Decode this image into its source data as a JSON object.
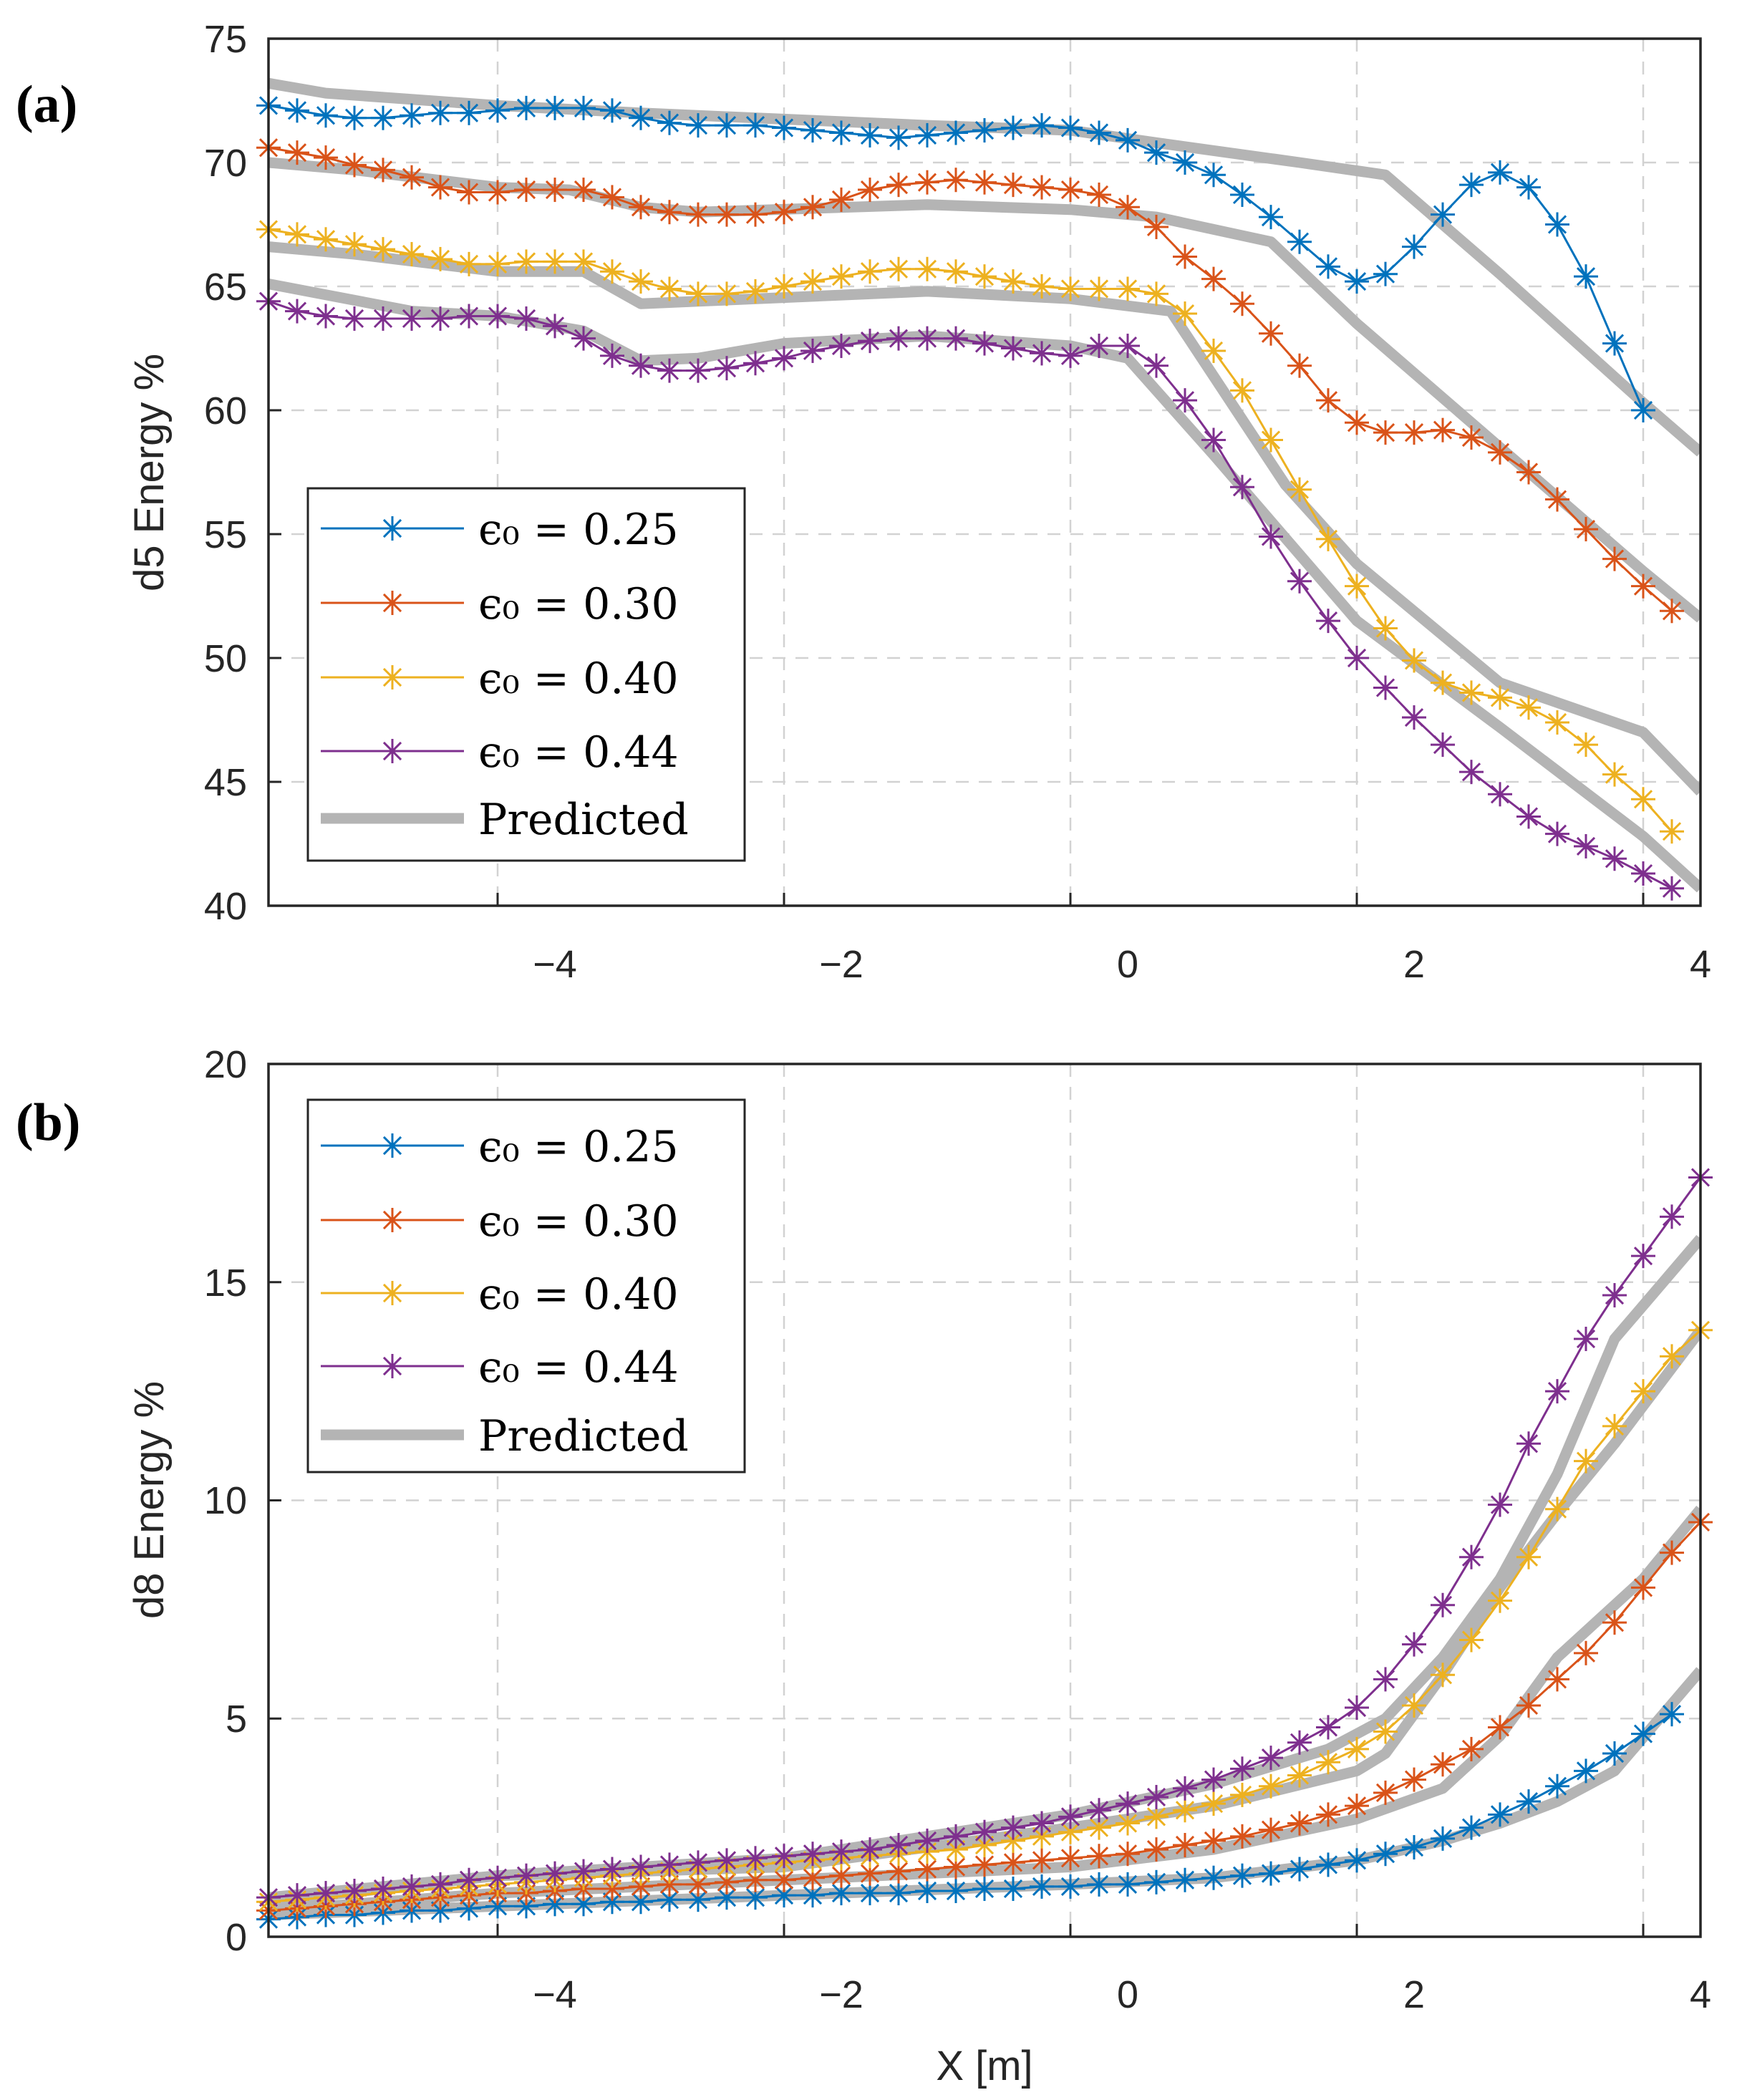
{
  "figure": {
    "colors": {
      "eps_025": "#0072BD",
      "eps_030": "#D95319",
      "eps_040": "#EDB120",
      "eps_044": "#7E2F8E",
      "predicted": "#b4b4b4"
    }
  },
  "chart_data": [
    {
      "type": "line",
      "panel": "(a)",
      "xlabel": "",
      "ylabel": "d5 Energy %",
      "xlim": [
        -5.6,
        4.4
      ],
      "ylim": [
        40,
        75
      ],
      "xticks": [
        -4,
        -2,
        0,
        2,
        4
      ],
      "xtick_labels": [
        "−4",
        "−2",
        "0",
        "2",
        "4"
      ],
      "yticks": [
        40,
        45,
        50,
        55,
        60,
        65,
        70,
        75
      ],
      "ytick_labels": [
        "40",
        "45",
        "50",
        "55",
        "60",
        "65",
        "70",
        "75"
      ],
      "grid": true,
      "legend_location": "bottom-left",
      "x_start": -5.6,
      "x_step": 0.2,
      "series": [
        {
          "name": "ϵ₀ = 0.25",
          "legend_label": "ϵ₀ = 0.25",
          "color": "#0072BD",
          "marker": "asterisk",
          "values": [
            72.3,
            72.1,
            71.9,
            71.8,
            71.8,
            71.9,
            72.0,
            72.0,
            72.1,
            72.2,
            72.2,
            72.2,
            72.1,
            71.8,
            71.6,
            71.5,
            71.5,
            71.5,
            71.4,
            71.3,
            71.2,
            71.1,
            71.0,
            71.1,
            71.2,
            71.3,
            71.4,
            71.5,
            71.4,
            71.2,
            70.9,
            70.4,
            70.0,
            69.5,
            68.7,
            67.8,
            66.8,
            65.8,
            65.2,
            65.5,
            66.6,
            67.9,
            69.1,
            69.6,
            69.0,
            67.5,
            65.4,
            62.7,
            60.0
          ]
        },
        {
          "name": "ϵ₀ = 0.30",
          "legend_label": "ϵ₀ = 0.30",
          "color": "#D95319",
          "marker": "asterisk",
          "values": [
            70.6,
            70.4,
            70.2,
            69.9,
            69.7,
            69.4,
            69.0,
            68.8,
            68.8,
            68.9,
            68.9,
            68.9,
            68.6,
            68.2,
            68.0,
            67.9,
            67.9,
            67.9,
            68.0,
            68.2,
            68.5,
            68.9,
            69.1,
            69.2,
            69.3,
            69.2,
            69.1,
            69.0,
            68.9,
            68.7,
            68.2,
            67.4,
            66.2,
            65.3,
            64.3,
            63.1,
            61.8,
            60.4,
            59.5,
            59.1,
            59.1,
            59.2,
            58.9,
            58.3,
            57.5,
            56.4,
            55.2,
            54.0,
            52.9,
            51.9
          ]
        },
        {
          "name": "ϵ₀ = 0.40",
          "legend_label": "ϵ₀ = 0.40",
          "color": "#EDB120",
          "marker": "asterisk",
          "values": [
            67.3,
            67.1,
            66.9,
            66.7,
            66.5,
            66.3,
            66.1,
            65.9,
            65.9,
            66.0,
            66.0,
            66.0,
            65.6,
            65.2,
            64.9,
            64.7,
            64.7,
            64.8,
            65.0,
            65.2,
            65.4,
            65.6,
            65.7,
            65.7,
            65.6,
            65.4,
            65.2,
            65.0,
            64.9,
            64.9,
            64.9,
            64.7,
            63.9,
            62.4,
            60.8,
            58.8,
            56.8,
            54.8,
            52.9,
            51.2,
            49.9,
            49.0,
            48.6,
            48.4,
            48.0,
            47.4,
            46.5,
            45.3,
            44.3,
            43.0
          ]
        },
        {
          "name": "ϵ₀ = 0.44",
          "legend_label": "ϵ₀ = 0.44",
          "color": "#7E2F8E",
          "marker": "asterisk",
          "values": [
            64.4,
            64.0,
            63.8,
            63.7,
            63.7,
            63.7,
            63.7,
            63.8,
            63.8,
            63.7,
            63.4,
            62.9,
            62.2,
            61.8,
            61.6,
            61.6,
            61.7,
            61.9,
            62.1,
            62.4,
            62.6,
            62.8,
            62.9,
            62.9,
            62.9,
            62.7,
            62.5,
            62.3,
            62.2,
            62.6,
            62.6,
            61.8,
            60.4,
            58.8,
            56.9,
            54.9,
            53.1,
            51.5,
            50.0,
            48.8,
            47.6,
            46.5,
            45.4,
            44.5,
            43.6,
            42.9,
            42.4,
            41.9,
            41.3,
            40.7
          ]
        },
        {
          "name": "Predicted (ϵ₀ = 0.25)",
          "legend_label": "Predicted",
          "color": "#b4b4b4",
          "style": "thick",
          "x": [
            -5.6,
            -5.2,
            -4.0,
            -3.0,
            -1.0,
            0.0,
            0.6,
            1.6,
            2.2,
            3.0,
            4.0,
            4.4
          ],
          "values": [
            73.2,
            72.8,
            72.3,
            72.0,
            71.5,
            71.3,
            70.8,
            70.0,
            69.5,
            65.5,
            60.3,
            58.3
          ]
        },
        {
          "name": "Predicted (ϵ₀ = 0.30)",
          "color": "#b4b4b4",
          "style": "thick",
          "x": [
            -5.6,
            -5.0,
            -4.0,
            -3.5,
            -3.0,
            -2.6,
            -1.0,
            0.0,
            0.6,
            1.4,
            2.0,
            3.0,
            4.0,
            4.4
          ],
          "values": [
            70.0,
            69.7,
            69.0,
            68.9,
            68.2,
            68.0,
            68.3,
            68.1,
            67.8,
            66.8,
            63.5,
            58.5,
            53.5,
            51.6
          ]
        },
        {
          "name": "Predicted (ϵ₀ = 0.40)",
          "color": "#b4b4b4",
          "style": "thick",
          "x": [
            -5.6,
            -5.0,
            -4.0,
            -3.4,
            -3.0,
            -2.6,
            -1.0,
            0.0,
            0.7,
            1.5,
            2.0,
            3.0,
            4.0,
            4.4
          ],
          "values": [
            66.6,
            66.3,
            65.6,
            65.6,
            64.3,
            64.4,
            64.8,
            64.5,
            64.0,
            57.0,
            53.8,
            49.0,
            47.0,
            44.6
          ]
        },
        {
          "name": "Predicted (ϵ₀ = 0.44)",
          "color": "#b4b4b4",
          "style": "thick",
          "x": [
            -5.6,
            -4.6,
            -4.0,
            -3.4,
            -3.0,
            -2.6,
            -2.0,
            -1.0,
            0.0,
            0.4,
            1.0,
            2.0,
            3.0,
            4.0,
            4.4
          ],
          "values": [
            65.1,
            64.0,
            63.8,
            63.2,
            62.0,
            62.1,
            62.7,
            63.0,
            62.6,
            62.1,
            58.2,
            51.5,
            47.2,
            42.8,
            40.7
          ]
        }
      ]
    },
    {
      "type": "line",
      "panel": "(b)",
      "xlabel": "X [m]",
      "ylabel": "d8 Energy %",
      "xlim": [
        -5.6,
        4.4
      ],
      "ylim": [
        0,
        20
      ],
      "xticks": [
        -4,
        -2,
        0,
        2,
        4
      ],
      "xtick_labels": [
        "−4",
        "−2",
        "0",
        "2",
        "4"
      ],
      "yticks": [
        0,
        5,
        10,
        15,
        20
      ],
      "ytick_labels": [
        "0",
        "5",
        "10",
        "15",
        "20"
      ],
      "grid": true,
      "legend_location": "top-left",
      "x_start": -5.6,
      "x_step": 0.2,
      "series": [
        {
          "name": "ϵ₀ = 0.25",
          "legend_label": "ϵ₀ = 0.25",
          "color": "#0072BD",
          "marker": "asterisk",
          "values": [
            0.4,
            0.45,
            0.5,
            0.5,
            0.55,
            0.6,
            0.6,
            0.65,
            0.7,
            0.7,
            0.75,
            0.75,
            0.8,
            0.8,
            0.85,
            0.85,
            0.9,
            0.9,
            0.95,
            0.95,
            1.0,
            1.0,
            1.0,
            1.05,
            1.05,
            1.1,
            1.1,
            1.15,
            1.15,
            1.2,
            1.2,
            1.25,
            1.3,
            1.35,
            1.4,
            1.45,
            1.55,
            1.65,
            1.75,
            1.9,
            2.05,
            2.25,
            2.5,
            2.8,
            3.1,
            3.45,
            3.8,
            4.2,
            4.65,
            5.1
          ]
        },
        {
          "name": "ϵ₀ = 0.30",
          "legend_label": "ϵ₀ = 0.30",
          "color": "#D95319",
          "marker": "asterisk",
          "values": [
            0.6,
            0.65,
            0.7,
            0.75,
            0.8,
            0.85,
            0.9,
            0.95,
            1.0,
            1.0,
            1.05,
            1.1,
            1.1,
            1.15,
            1.2,
            1.2,
            1.25,
            1.3,
            1.3,
            1.35,
            1.4,
            1.45,
            1.5,
            1.55,
            1.6,
            1.65,
            1.7,
            1.75,
            1.8,
            1.85,
            1.9,
            2.0,
            2.1,
            2.2,
            2.3,
            2.45,
            2.6,
            2.8,
            3.0,
            3.3,
            3.6,
            3.95,
            4.3,
            4.8,
            5.3,
            5.9,
            6.5,
            7.2,
            8.0,
            8.8,
            9.5
          ]
        },
        {
          "name": "ϵ₀ = 0.40",
          "legend_label": "ϵ₀ = 0.40",
          "color": "#EDB120",
          "marker": "asterisk",
          "values": [
            0.8,
            0.85,
            0.9,
            0.95,
            1.0,
            1.05,
            1.1,
            1.15,
            1.2,
            1.25,
            1.3,
            1.35,
            1.4,
            1.45,
            1.5,
            1.55,
            1.6,
            1.65,
            1.7,
            1.75,
            1.8,
            1.85,
            1.9,
            1.95,
            2.0,
            2.1,
            2.2,
            2.3,
            2.4,
            2.5,
            2.6,
            2.75,
            2.9,
            3.05,
            3.25,
            3.45,
            3.7,
            4.0,
            4.3,
            4.7,
            5.3,
            6.0,
            6.8,
            7.7,
            8.7,
            9.8,
            10.9,
            11.7,
            12.5,
            13.3,
            13.9
          ]
        },
        {
          "name": "ϵ₀ = 0.44",
          "legend_label": "ϵ₀ = 0.44",
          "color": "#7E2F8E",
          "marker": "asterisk",
          "values": [
            0.9,
            0.95,
            1.0,
            1.05,
            1.1,
            1.15,
            1.2,
            1.3,
            1.35,
            1.4,
            1.45,
            1.5,
            1.55,
            1.6,
            1.65,
            1.7,
            1.75,
            1.8,
            1.85,
            1.9,
            1.95,
            2.0,
            2.1,
            2.2,
            2.3,
            2.4,
            2.5,
            2.6,
            2.75,
            2.9,
            3.05,
            3.2,
            3.4,
            3.6,
            3.85,
            4.1,
            4.45,
            4.8,
            5.25,
            5.9,
            6.7,
            7.6,
            8.7,
            9.9,
            11.3,
            12.5,
            13.7,
            14.7,
            15.6,
            16.5,
            17.4
          ]
        },
        {
          "name": "Predicted (ϵ₀ = 0.25)",
          "legend_label": "Predicted",
          "color": "#b4b4b4",
          "style": "thick",
          "x": [
            -5.6,
            -4.0,
            -2.0,
            0.0,
            1.0,
            2.0,
            2.6,
            3.0,
            3.4,
            3.8,
            4.4
          ],
          "values": [
            0.5,
            0.7,
            0.95,
            1.2,
            1.35,
            1.75,
            2.2,
            2.6,
            3.1,
            3.8,
            6.1
          ]
        },
        {
          "name": "Predicted (ϵ₀ = 0.30)",
          "color": "#b4b4b4",
          "style": "thick",
          "x": [
            -5.6,
            -4.0,
            -2.0,
            0.0,
            1.0,
            2.0,
            2.6,
            3.0,
            3.4,
            4.0,
            4.4
          ],
          "values": [
            0.6,
            1.0,
            1.3,
            1.6,
            2.0,
            2.7,
            3.4,
            4.6,
            6.4,
            8.2,
            9.8
          ]
        },
        {
          "name": "Predicted (ϵ₀ = 0.40)",
          "color": "#b4b4b4",
          "style": "thick",
          "x": [
            -5.6,
            -4.0,
            -2.0,
            0.0,
            1.0,
            2.0,
            2.2,
            2.6,
            3.0,
            3.4,
            3.8,
            4.4
          ],
          "values": [
            0.8,
            1.4,
            1.6,
            2.5,
            3.0,
            3.8,
            4.2,
            6.0,
            8.0,
            9.7,
            11.3,
            13.9
          ]
        },
        {
          "name": "Predicted (ϵ₀ = 0.44)",
          "color": "#b4b4b4",
          "style": "thick",
          "x": [
            -5.6,
            -4.0,
            -2.0,
            0.0,
            1.0,
            1.8,
            2.2,
            2.6,
            3.0,
            3.4,
            3.8,
            4.4
          ],
          "values": [
            0.9,
            1.4,
            1.8,
            2.8,
            3.5,
            4.3,
            5.0,
            6.4,
            8.2,
            10.6,
            13.7,
            16.0
          ]
        }
      ]
    }
  ]
}
